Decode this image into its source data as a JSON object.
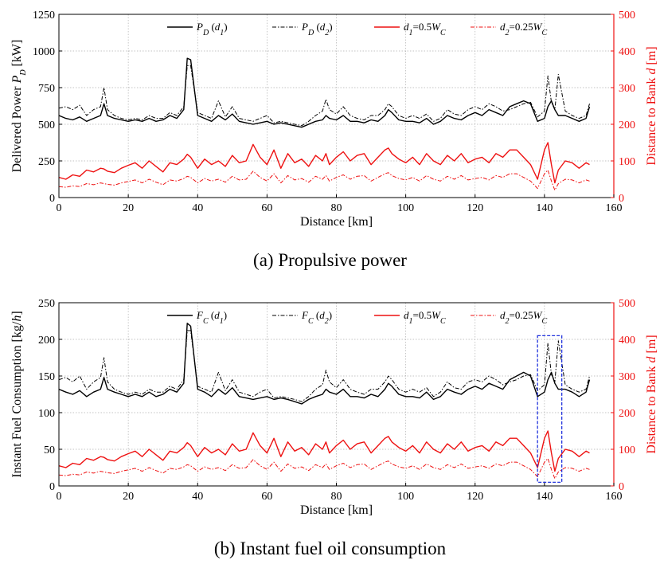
{
  "captions": [
    "(a)  Propulsive power",
    "(b)  Instant fuel oil consumption"
  ],
  "colors": {
    "black": "#000000",
    "red": "#ee1111",
    "grid": "#b0b0b0",
    "highlight": "#2233dd"
  },
  "chart_data": [
    {
      "type": "line",
      "xlabel": "Distance [km]",
      "ylabel_left": "Delivered Power P_D [kW]",
      "ylabel_right": "Distance to Bank d [m]",
      "xlim": [
        0,
        160
      ],
      "ylim_left": [
        0,
        1250
      ],
      "ylim_right": [
        0,
        500
      ],
      "xticks": [
        0,
        20,
        40,
        60,
        80,
        100,
        120,
        140,
        160
      ],
      "yticks_left": [
        0,
        250,
        500,
        750,
        1000,
        1250
      ],
      "yticks_right": [
        0,
        100,
        200,
        300,
        400,
        500
      ],
      "grid": true,
      "legend": "top",
      "x": [
        0,
        2,
        4,
        6,
        8,
        10,
        12,
        13,
        14,
        16,
        18,
        20,
        22,
        24,
        26,
        28,
        30,
        32,
        34,
        36,
        37,
        38,
        40,
        42,
        44,
        46,
        48,
        50,
        52,
        54,
        56,
        58,
        60,
        62,
        64,
        66,
        68,
        70,
        72,
        74,
        76,
        77,
        78,
        80,
        82,
        84,
        86,
        88,
        90,
        92,
        94,
        95,
        96,
        98,
        100,
        102,
        104,
        106,
        108,
        110,
        112,
        114,
        116,
        118,
        120,
        122,
        124,
        126,
        128,
        130,
        132,
        134,
        136,
        138,
        140,
        141,
        142,
        143,
        144,
        146,
        148,
        150,
        152,
        153
      ],
      "series": [
        {
          "name": "P_D (d_1)",
          "axis": "left",
          "style": "solid",
          "color": "#000000",
          "values": [
            560,
            540,
            530,
            550,
            520,
            540,
            560,
            640,
            560,
            540,
            530,
            520,
            530,
            520,
            540,
            520,
            530,
            560,
            540,
            600,
            950,
            940,
            560,
            540,
            520,
            560,
            530,
            570,
            520,
            510,
            500,
            510,
            520,
            500,
            510,
            500,
            490,
            480,
            500,
            520,
            530,
            560,
            540,
            530,
            560,
            520,
            520,
            510,
            530,
            520,
            560,
            600,
            580,
            530,
            520,
            520,
            510,
            540,
            500,
            520,
            560,
            540,
            530,
            560,
            580,
            560,
            600,
            580,
            560,
            620,
            640,
            660,
            640,
            520,
            540,
            620,
            660,
            600,
            560,
            560,
            540,
            520,
            540,
            620
          ]
        },
        {
          "name": "P_D (d_2)",
          "axis": "left",
          "style": "dashdot",
          "color": "#000000",
          "values": [
            610,
            620,
            600,
            630,
            560,
            600,
            620,
            750,
            600,
            560,
            540,
            530,
            540,
            530,
            560,
            540,
            540,
            580,
            560,
            620,
            900,
            900,
            580,
            560,
            540,
            660,
            550,
            620,
            540,
            530,
            520,
            540,
            560,
            510,
            520,
            510,
            500,
            490,
            520,
            560,
            590,
            670,
            600,
            570,
            620,
            560,
            540,
            530,
            560,
            560,
            600,
            640,
            620,
            560,
            540,
            560,
            540,
            570,
            520,
            540,
            600,
            570,
            560,
            600,
            620,
            600,
            640,
            620,
            590,
            600,
            620,
            640,
            650,
            550,
            590,
            830,
            650,
            600,
            840,
            590,
            560,
            540,
            560,
            640
          ]
        },
        {
          "name": "d_1=0.5W_C",
          "axis": "right",
          "style": "solid",
          "color": "#ee1111",
          "values": [
            55,
            50,
            62,
            58,
            75,
            70,
            80,
            78,
            72,
            68,
            80,
            88,
            95,
            80,
            100,
            85,
            70,
            95,
            90,
            105,
            118,
            110,
            80,
            105,
            90,
            100,
            85,
            115,
            95,
            100,
            145,
            110,
            90,
            130,
            80,
            120,
            95,
            105,
            85,
            115,
            100,
            120,
            90,
            110,
            125,
            100,
            115,
            120,
            90,
            110,
            130,
            135,
            120,
            105,
            95,
            110,
            90,
            120,
            100,
            90,
            115,
            100,
            120,
            95,
            105,
            110,
            95,
            120,
            110,
            130,
            130,
            110,
            90,
            50,
            130,
            150,
            90,
            40,
            75,
            100,
            95,
            80,
            95,
            90
          ]
        },
        {
          "name": "d_2=0.25W_C",
          "axis": "right",
          "style": "dashdot",
          "color": "#ee1111",
          "values": [
            30,
            28,
            32,
            30,
            38,
            35,
            40,
            38,
            36,
            34,
            40,
            44,
            48,
            40,
            50,
            42,
            35,
            48,
            45,
            52,
            58,
            55,
            40,
            52,
            45,
            50,
            42,
            58,
            48,
            50,
            72,
            55,
            45,
            65,
            40,
            60,
            48,
            52,
            42,
            58,
            50,
            60,
            45,
            55,
            62,
            50,
            58,
            60,
            45,
            55,
            65,
            68,
            60,
            52,
            48,
            55,
            45,
            60,
            50,
            45,
            58,
            50,
            60,
            48,
            52,
            55,
            48,
            60,
            55,
            65,
            65,
            55,
            45,
            25,
            65,
            75,
            45,
            20,
            38,
            50,
            48,
            40,
            48,
            45
          ]
        }
      ]
    },
    {
      "type": "line",
      "xlabel": "Distance [km]",
      "ylabel_left": "Instant Fuel Consumption [kg/h]",
      "ylabel_right": "Distance to Bank d [m]",
      "xlim": [
        0,
        160
      ],
      "ylim_left": [
        0,
        250
      ],
      "ylim_right": [
        0,
        500
      ],
      "xticks": [
        0,
        20,
        40,
        60,
        80,
        100,
        120,
        140,
        160
      ],
      "yticks_left": [
        0,
        50,
        100,
        150,
        200,
        250
      ],
      "yticks_right": [
        0,
        100,
        200,
        300,
        400,
        500
      ],
      "grid": true,
      "legend": "top",
      "highlight_box": {
        "x": [
          138,
          145
        ],
        "y_right": [
          10,
          410
        ]
      },
      "x": [
        0,
        2,
        4,
        6,
        8,
        10,
        12,
        13,
        14,
        16,
        18,
        20,
        22,
        24,
        26,
        28,
        30,
        32,
        34,
        36,
        37,
        38,
        40,
        42,
        44,
        46,
        48,
        50,
        52,
        54,
        56,
        58,
        60,
        62,
        64,
        66,
        68,
        70,
        72,
        74,
        76,
        77,
        78,
        80,
        82,
        84,
        86,
        88,
        90,
        92,
        94,
        95,
        96,
        98,
        100,
        102,
        104,
        106,
        108,
        110,
        112,
        114,
        116,
        118,
        120,
        122,
        124,
        126,
        128,
        130,
        132,
        134,
        136,
        138,
        140,
        141,
        142,
        143,
        144,
        146,
        148,
        150,
        152,
        153
      ],
      "series": [
        {
          "name": "F_C (d_1)",
          "axis": "left",
          "style": "solid",
          "color": "#000000",
          "values": [
            132,
            128,
            125,
            130,
            122,
            128,
            132,
            148,
            132,
            128,
            125,
            122,
            125,
            122,
            128,
            122,
            125,
            132,
            128,
            140,
            222,
            218,
            132,
            128,
            122,
            132,
            125,
            134,
            122,
            120,
            118,
            120,
            122,
            118,
            120,
            118,
            115,
            112,
            118,
            122,
            125,
            132,
            128,
            125,
            132,
            122,
            122,
            120,
            125,
            122,
            132,
            140,
            136,
            125,
            122,
            122,
            120,
            128,
            118,
            122,
            132,
            128,
            125,
            132,
            136,
            132,
            140,
            136,
            132,
            145,
            150,
            155,
            150,
            122,
            128,
            145,
            155,
            140,
            132,
            132,
            128,
            122,
            128,
            145
          ]
        },
        {
          "name": "F_C (d_2)",
          "axis": "left",
          "style": "dashdot",
          "color": "#000000",
          "values": [
            145,
            148,
            142,
            150,
            132,
            142,
            148,
            175,
            142,
            132,
            128,
            125,
            128,
            125,
            132,
            128,
            128,
            136,
            132,
            145,
            212,
            212,
            136,
            132,
            128,
            155,
            130,
            145,
            128,
            125,
            122,
            128,
            132,
            120,
            122,
            120,
            118,
            115,
            122,
            132,
            138,
            158,
            142,
            134,
            145,
            132,
            128,
            125,
            132,
            132,
            142,
            150,
            145,
            132,
            128,
            132,
            128,
            134,
            122,
            128,
            142,
            134,
            132,
            142,
            145,
            142,
            150,
            145,
            138,
            142,
            145,
            150,
            152,
            130,
            138,
            195,
            152,
            142,
            198,
            138,
            132,
            128,
            132,
            150
          ]
        },
        {
          "name": "d_1=0.5W_C",
          "axis": "right",
          "style": "solid",
          "color": "#ee1111",
          "values": [
            55,
            50,
            62,
            58,
            75,
            70,
            80,
            78,
            72,
            68,
            80,
            88,
            95,
            80,
            100,
            85,
            70,
            95,
            90,
            105,
            118,
            110,
            80,
            105,
            90,
            100,
            85,
            115,
            95,
            100,
            145,
            110,
            90,
            130,
            80,
            120,
            95,
            105,
            85,
            115,
            100,
            120,
            90,
            110,
            125,
            100,
            115,
            120,
            90,
            110,
            130,
            135,
            120,
            105,
            95,
            110,
            90,
            120,
            100,
            90,
            115,
            100,
            120,
            95,
            105,
            110,
            95,
            120,
            110,
            130,
            130,
            110,
            90,
            50,
            130,
            150,
            90,
            40,
            75,
            100,
            95,
            80,
            95,
            90
          ]
        },
        {
          "name": "d_2=0.25W_C",
          "axis": "right",
          "style": "dashdot",
          "color": "#ee1111",
          "values": [
            30,
            28,
            32,
            30,
            38,
            35,
            40,
            38,
            36,
            34,
            40,
            44,
            48,
            40,
            50,
            42,
            35,
            48,
            45,
            52,
            58,
            55,
            40,
            52,
            45,
            50,
            42,
            58,
            48,
            50,
            72,
            55,
            45,
            65,
            40,
            60,
            48,
            52,
            42,
            58,
            50,
            60,
            45,
            55,
            62,
            50,
            58,
            60,
            45,
            55,
            65,
            68,
            60,
            52,
            48,
            55,
            45,
            60,
            50,
            45,
            58,
            50,
            60,
            48,
            52,
            55,
            48,
            60,
            55,
            65,
            65,
            55,
            45,
            25,
            65,
            75,
            45,
            20,
            38,
            50,
            48,
            40,
            48,
            45
          ]
        }
      ]
    }
  ]
}
